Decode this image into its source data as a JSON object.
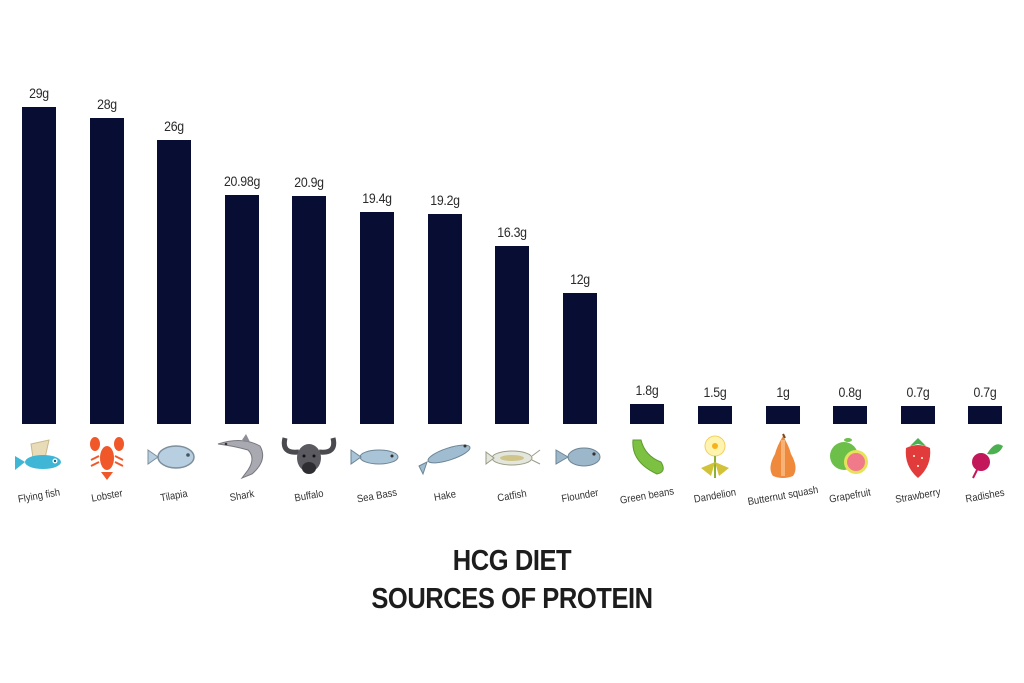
{
  "title": {
    "line1": "HCG DIET",
    "line2": "SOURCES OF PROTEIN"
  },
  "colors": {
    "bar": "#080d33",
    "text": "#222222",
    "background": "#ffffff"
  },
  "chart_data": {
    "type": "bar",
    "title": "HCG DIET SOURCES OF PROTEIN",
    "xlabel": "",
    "ylabel": "",
    "unit": "g",
    "grid": false,
    "legend": null,
    "categories": [
      "Flying fish",
      "Lobster",
      "Tilapia",
      "Shark",
      "Buffalo",
      "Sea Bass",
      "Hake",
      "Catfish",
      "Flounder",
      "Green beans",
      "Dandelion",
      "Butternut squash",
      "Grapefruit",
      "Strawberry",
      "Radishes"
    ],
    "values": [
      29,
      28,
      26,
      20.98,
      20.9,
      19.4,
      19.2,
      16.3,
      12,
      1.8,
      1.5,
      1,
      0.8,
      0.7,
      0.7
    ],
    "value_labels": [
      "29g",
      "28g",
      "26g",
      "20.98g",
      "20.9g",
      "19.4g",
      "19.2g",
      "16.3g",
      "12g",
      "1.8g",
      "1.5g",
      "1g",
      "0.8g",
      "0.7g",
      "0.7g"
    ],
    "icons": [
      "flying-fish-icon",
      "lobster-icon",
      "tilapia-icon",
      "shark-icon",
      "buffalo-icon",
      "sea-bass-icon",
      "hake-icon",
      "catfish-icon",
      "flounder-icon",
      "green-beans-icon",
      "dandelion-icon",
      "butternut-squash-icon",
      "grapefruit-icon",
      "strawberry-icon",
      "radishes-icon"
    ],
    "ylim": [
      0,
      30
    ]
  }
}
